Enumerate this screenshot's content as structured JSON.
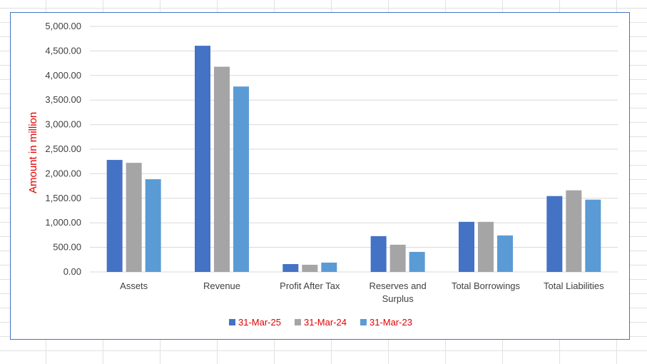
{
  "chart_data": {
    "type": "bar",
    "title": "",
    "xlabel": "",
    "ylabel": "Amount in million",
    "ylim": [
      0,
      5000
    ],
    "yticks": [
      "0.00",
      "500.00",
      "1,000.00",
      "1,500.00",
      "2,000.00",
      "2,500.00",
      "3,000.00",
      "3,500.00",
      "4,000.00",
      "4,500.00",
      "5,000.00"
    ],
    "grid": true,
    "legend_position": "bottom",
    "categories": [
      "Assets",
      "Revenue",
      "Profit After Tax",
      "Reserves and Surplus",
      "Total Borrowings",
      "Total Liabilities"
    ],
    "series": [
      {
        "name": "31-Mar-25",
        "color": "#4472c4",
        "values": [
          2281,
          4606,
          160,
          729,
          1020,
          1545
        ]
      },
      {
        "name": "31-Mar-24",
        "color": "#a5a5a5",
        "values": [
          2222,
          4179,
          146,
          554,
          1020,
          1662
        ]
      },
      {
        "name": "31-Mar-23",
        "color": "#5b9bd5",
        "values": [
          1888,
          3776,
          190,
          408,
          743,
          1472
        ]
      }
    ],
    "ylabel_color": "#e00000",
    "legend_text_color": "#e00000"
  }
}
